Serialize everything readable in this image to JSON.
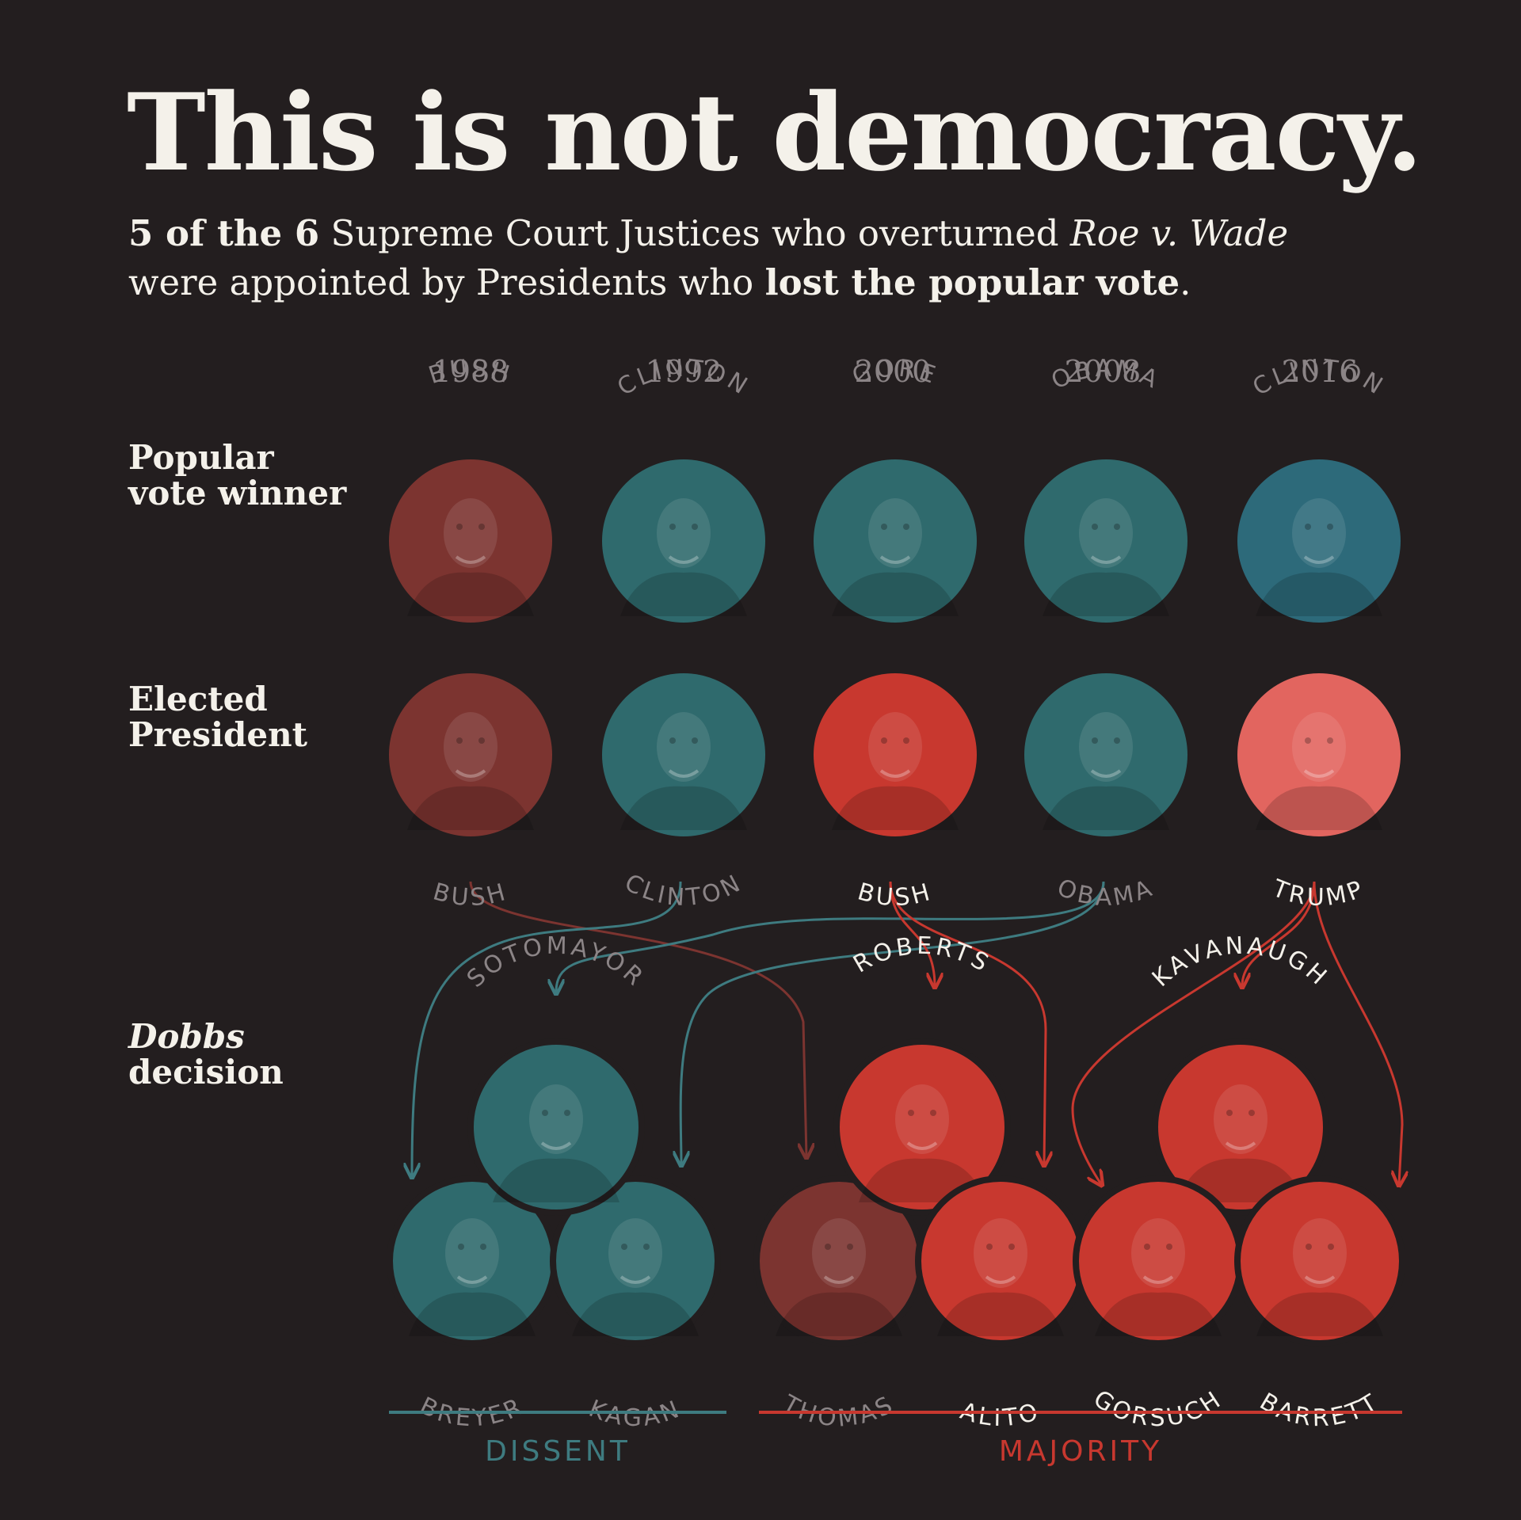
{
  "title": "This is not democracy.",
  "subtitle": {
    "line1": [
      {
        "text": "5 of the 6",
        "style": "bold"
      },
      {
        "text": " Supreme Court Justices who overturned ",
        "style": "normal"
      },
      {
        "text": "Roe v. Wade",
        "style": "italic"
      }
    ],
    "line2": [
      {
        "text": "were appointed by Presidents who ",
        "style": "normal"
      },
      {
        "text": "lost the popular vote",
        "style": "bold"
      },
      {
        "text": ".",
        "style": "normal"
      }
    ]
  },
  "row_labels": {
    "popular": [
      "Popular",
      "vote winner"
    ],
    "elected": [
      "Elected",
      "President"
    ],
    "dobbs": [
      "Dobbs",
      "decision"
    ]
  },
  "years": [
    "1988",
    "1992",
    "2000",
    "2008",
    "2016"
  ],
  "popular_vote_winners": [
    {
      "name": "BUSH",
      "party": "R"
    },
    {
      "name": "CLINTON",
      "party": "D"
    },
    {
      "name": "GORE",
      "party": "D"
    },
    {
      "name": "OBAMA",
      "party": "D"
    },
    {
      "name": "CLINTON",
      "party": "D"
    }
  ],
  "elected_presidents": [
    {
      "name": "BUSH",
      "party": "R",
      "lost_popular_vote": false
    },
    {
      "name": "CLINTON",
      "party": "D",
      "lost_popular_vote": false
    },
    {
      "name": "BUSH",
      "party": "R",
      "lost_popular_vote": true
    },
    {
      "name": "OBAMA",
      "party": "D",
      "lost_popular_vote": false
    },
    {
      "name": "TRUMP",
      "party": "R",
      "lost_popular_vote": true
    }
  ],
  "justices": [
    {
      "name": "SOTOMAYOR",
      "group": "dissent",
      "appointed_by": 3,
      "via_lost_vote": false
    },
    {
      "name": "BREYER",
      "group": "dissent",
      "appointed_by": 1,
      "via_lost_vote": false
    },
    {
      "name": "KAGAN",
      "group": "dissent",
      "appointed_by": 3,
      "via_lost_vote": false
    },
    {
      "name": "ROBERTS",
      "group": "majority",
      "appointed_by": 2,
      "via_lost_vote": true
    },
    {
      "name": "THOMAS",
      "group": "majority",
      "appointed_by": 0,
      "via_lost_vote": false
    },
    {
      "name": "ALITO",
      "group": "majority",
      "appointed_by": 2,
      "via_lost_vote": true
    },
    {
      "name": "KAVANAUGH",
      "group": "majority",
      "appointed_by": 4,
      "via_lost_vote": true
    },
    {
      "name": "GORSUCH",
      "group": "majority",
      "appointed_by": 4,
      "via_lost_vote": true
    },
    {
      "name": "BARRETT",
      "group": "majority",
      "appointed_by": 4,
      "via_lost_vote": true
    }
  ],
  "groups": {
    "dissent": "DISSENT",
    "majority": "MAJORITY"
  },
  "colors": {
    "background": "#231e1f",
    "democrat": "#2f6a6d",
    "democrat_bright": "#3a8088",
    "republican_dim": "#7c3430",
    "republican_bright": "#c8382f",
    "trump_fill": "#e2655f",
    "label_dim": "#8b8486",
    "label_bright": "#f4f1ea",
    "dissent_rule": "#3e7b80",
    "majority_rule": "#c8382f"
  }
}
